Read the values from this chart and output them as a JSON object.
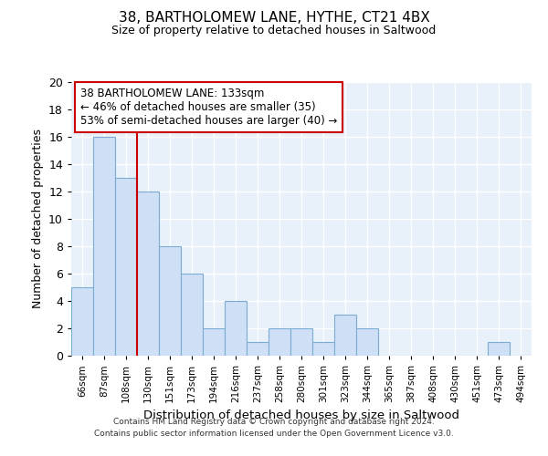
{
  "title": "38, BARTHOLOMEW LANE, HYTHE, CT21 4BX",
  "subtitle": "Size of property relative to detached houses in Saltwood",
  "xlabel": "Distribution of detached houses by size in Saltwood",
  "ylabel": "Number of detached properties",
  "bin_labels": [
    "66sqm",
    "87sqm",
    "108sqm",
    "130sqm",
    "151sqm",
    "173sqm",
    "194sqm",
    "216sqm",
    "237sqm",
    "258sqm",
    "280sqm",
    "301sqm",
    "323sqm",
    "344sqm",
    "365sqm",
    "387sqm",
    "408sqm",
    "430sqm",
    "451sqm",
    "473sqm",
    "494sqm"
  ],
  "bar_values": [
    5,
    16,
    13,
    12,
    8,
    6,
    2,
    4,
    1,
    2,
    2,
    1,
    3,
    2,
    0,
    0,
    0,
    0,
    0,
    1,
    0
  ],
  "bar_color": "#cfdff5",
  "bar_edge_color": "#7aadd4",
  "vline_index": 3,
  "vline_color": "#cc0000",
  "ylim": [
    0,
    20
  ],
  "yticks": [
    0,
    2,
    4,
    6,
    8,
    10,
    12,
    14,
    16,
    18,
    20
  ],
  "annotation_title": "38 BARTHOLOMEW LANE: 133sqm",
  "annotation_line1": "← 46% of detached houses are smaller (35)",
  "annotation_line2": "53% of semi-detached houses are larger (40) →",
  "annotation_box_color": "white",
  "annotation_box_edge": "#cc0000",
  "bg_color": "#e8f0fa",
  "grid_color": "white",
  "footer_line1": "Contains HM Land Registry data © Crown copyright and database right 2024.",
  "footer_line2": "Contains public sector information licensed under the Open Government Licence v3.0."
}
